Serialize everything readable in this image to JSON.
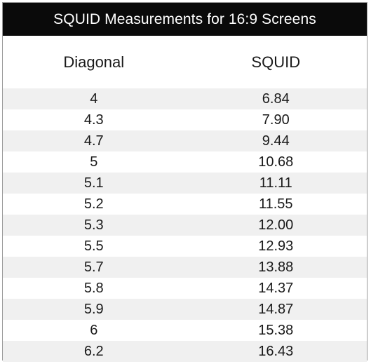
{
  "table": {
    "title": "SQUID Measurements for 16:9 Screens",
    "columns": [
      "Diagonal",
      "SQUID"
    ],
    "rows": [
      {
        "diagonal": "4",
        "squid": "6.84"
      },
      {
        "diagonal": "4.3",
        "squid": "7.90"
      },
      {
        "diagonal": "4.7",
        "squid": "9.44"
      },
      {
        "diagonal": "5",
        "squid": "10.68"
      },
      {
        "diagonal": "5.1",
        "squid": "11.11"
      },
      {
        "diagonal": "5.2",
        "squid": "11.55"
      },
      {
        "diagonal": "5.3",
        "squid": "12.00"
      },
      {
        "diagonal": "5.5",
        "squid": "12.93"
      },
      {
        "diagonal": "5.7",
        "squid": "13.88"
      },
      {
        "diagonal": "5.8",
        "squid": "14.37"
      },
      {
        "diagonal": "5.9",
        "squid": "14.87"
      },
      {
        "diagonal": "6",
        "squid": "15.38"
      },
      {
        "diagonal": "6.2",
        "squid": "16.43"
      }
    ]
  },
  "colors": {
    "title_background": "#0a0a0a",
    "title_text": "#ffffff",
    "row_shade": "#f0f0f0",
    "border": "#9a9a9a"
  }
}
